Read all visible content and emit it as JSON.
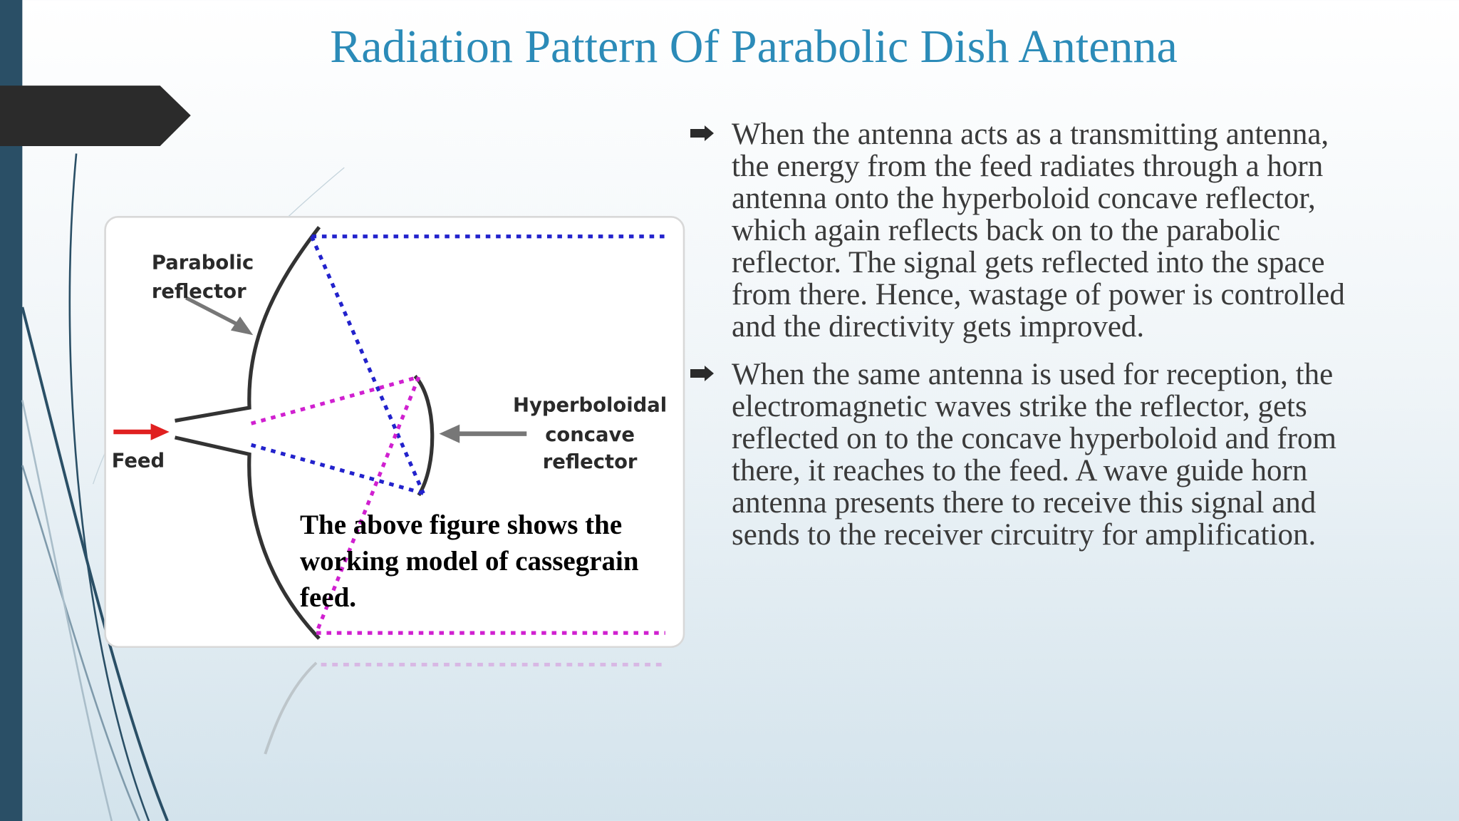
{
  "title": "Radiation Pattern Of Parabolic Dish Antenna",
  "figure": {
    "labels": {
      "parabolic_reflector": [
        "Parabolic",
        "reflector"
      ],
      "feed": "Feed",
      "hyperboloidal_reflector": [
        "Hyperboloidal",
        "concave",
        "reflector"
      ]
    },
    "caption": "The above figure shows the working model of cassegrain feed."
  },
  "bullets": [
    "When the antenna acts as a transmitting antenna, the energy from the feed radiates through a horn antenna onto the hyperboloid concave reflector, which again reflects back on to the parabolic reflector. The signal gets reflected into the space from there. Hence, wastage of power is controlled and the directivity gets improved.",
    "When the same antenna is used for reception, the electromagnetic waves strike the reflector, gets reflected on to the concave hyperboloid and from there, it reaches to the feed. A wave guide horn antenna presents there to receive this signal and sends to the receiver circuitry for amplification."
  ]
}
